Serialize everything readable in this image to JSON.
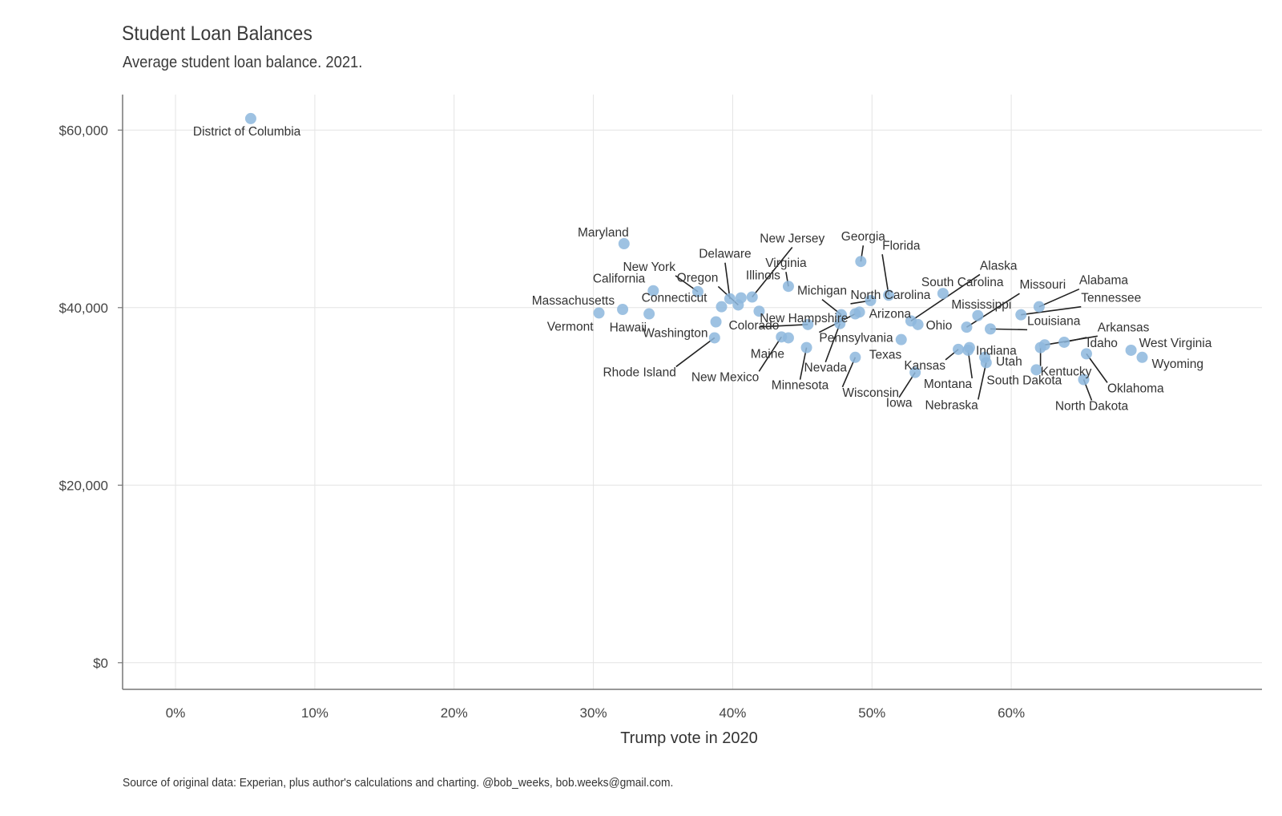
{
  "chart_data": {
    "type": "scatter",
    "title": "Student Loan Balances",
    "subtitle": "Average student loan balance. 2021.",
    "xlabel": "Trump vote in 2020",
    "ylabel": "",
    "caption": "Source of original data: Experian, plus author's calculations and charting. @bob_weeks, bob.weeks@gmail.com.",
    "xlim": [
      -0.038,
      0.78
    ],
    "ylim": [
      -3000,
      64000
    ],
    "x_ticks": [
      0,
      0.1,
      0.2,
      0.3,
      0.4,
      0.5,
      0.6
    ],
    "x_tick_labels": [
      "0%",
      "10%",
      "20%",
      "30%",
      "40%",
      "50%",
      "60%"
    ],
    "y_ticks": [
      0,
      20000,
      40000,
      60000
    ],
    "y_tick_labels": [
      "$0",
      "$20,000",
      "$40,000",
      "$60,000"
    ],
    "grid": true,
    "point_color": "#8db7dd",
    "points": [
      {
        "name": "District of Columbia",
        "x": 0.054,
        "y": 61300
      },
      {
        "name": "Maryland",
        "x": 0.322,
        "y": 47200
      },
      {
        "name": "New York",
        "x": 0.375,
        "y": 41800
      },
      {
        "name": "California",
        "x": 0.343,
        "y": 41900
      },
      {
        "name": "Massachusetts",
        "x": 0.321,
        "y": 39800
      },
      {
        "name": "Vermont",
        "x": 0.304,
        "y": 39400
      },
      {
        "name": "Hawaii",
        "x": 0.34,
        "y": 39300
      },
      {
        "name": "Connecticut",
        "x": 0.392,
        "y": 40100
      },
      {
        "name": "Oregon",
        "x": 0.404,
        "y": 40300
      },
      {
        "name": "Delaware",
        "x": 0.398,
        "y": 41000
      },
      {
        "name": "Illinois",
        "x": 0.406,
        "y": 41100
      },
      {
        "name": "New Jersey",
        "x": 0.414,
        "y": 41200
      },
      {
        "name": "Virginia",
        "x": 0.44,
        "y": 42400
      },
      {
        "name": "Colorado",
        "x": 0.419,
        "y": 39600
      },
      {
        "name": "Washington",
        "x": 0.388,
        "y": 38400
      },
      {
        "name": "Rhode Island",
        "x": 0.387,
        "y": 36600
      },
      {
        "name": "Maine",
        "x": 0.44,
        "y": 36600
      },
      {
        "name": "New Mexico",
        "x": 0.435,
        "y": 36700
      },
      {
        "name": "Minnesota",
        "x": 0.453,
        "y": 35500
      },
      {
        "name": "New Hampshire",
        "x": 0.454,
        "y": 38100
      },
      {
        "name": "Michigan",
        "x": 0.478,
        "y": 39200
      },
      {
        "name": "Nevada",
        "x": 0.477,
        "y": 38200
      },
      {
        "name": "Pennsylvania",
        "x": 0.488,
        "y": 39300
      },
      {
        "name": "Arizona",
        "x": 0.491,
        "y": 39500
      },
      {
        "name": "Georgia",
        "x": 0.492,
        "y": 45200
      },
      {
        "name": "North Carolina",
        "x": 0.499,
        "y": 40800
      },
      {
        "name": "Florida",
        "x": 0.512,
        "y": 41400
      },
      {
        "name": "Wisconsin",
        "x": 0.488,
        "y": 34400
      },
      {
        "name": "Texas",
        "x": 0.521,
        "y": 36400
      },
      {
        "name": "Iowa",
        "x": 0.531,
        "y": 32700
      },
      {
        "name": "Ohio",
        "x": 0.533,
        "y": 38100
      },
      {
        "name": "Alaska",
        "x": 0.528,
        "y": 38500
      },
      {
        "name": "South Carolina",
        "x": 0.551,
        "y": 41600
      },
      {
        "name": "Kansas",
        "x": 0.562,
        "y": 35300
      },
      {
        "name": "Mississippi",
        "x": 0.576,
        "y": 39100
      },
      {
        "name": "Missouri",
        "x": 0.568,
        "y": 37800
      },
      {
        "name": "Indiana",
        "x": 0.57,
        "y": 35500
      },
      {
        "name": "Montana",
        "x": 0.569,
        "y": 35200
      },
      {
        "name": "Utah",
        "x": 0.581,
        "y": 34400
      },
      {
        "name": "Nebraska",
        "x": 0.582,
        "y": 33800
      },
      {
        "name": "Louisiana",
        "x": 0.585,
        "y": 37600
      },
      {
        "name": "Alabama",
        "x": 0.62,
        "y": 40100
      },
      {
        "name": "Tennessee",
        "x": 0.607,
        "y": 39200
      },
      {
        "name": "South Dakota",
        "x": 0.618,
        "y": 33000
      },
      {
        "name": "Kentucky",
        "x": 0.621,
        "y": 35500
      },
      {
        "name": "Arkansas",
        "x": 0.624,
        "y": 35800
      },
      {
        "name": "Idaho",
        "x": 0.638,
        "y": 36100
      },
      {
        "name": "Oklahoma",
        "x": 0.654,
        "y": 34800
      },
      {
        "name": "North Dakota",
        "x": 0.652,
        "y": 31900
      },
      {
        "name": "West Virginia",
        "x": 0.686,
        "y": 35200
      },
      {
        "name": "Wyoming",
        "x": 0.694,
        "y": 34400
      }
    ]
  }
}
